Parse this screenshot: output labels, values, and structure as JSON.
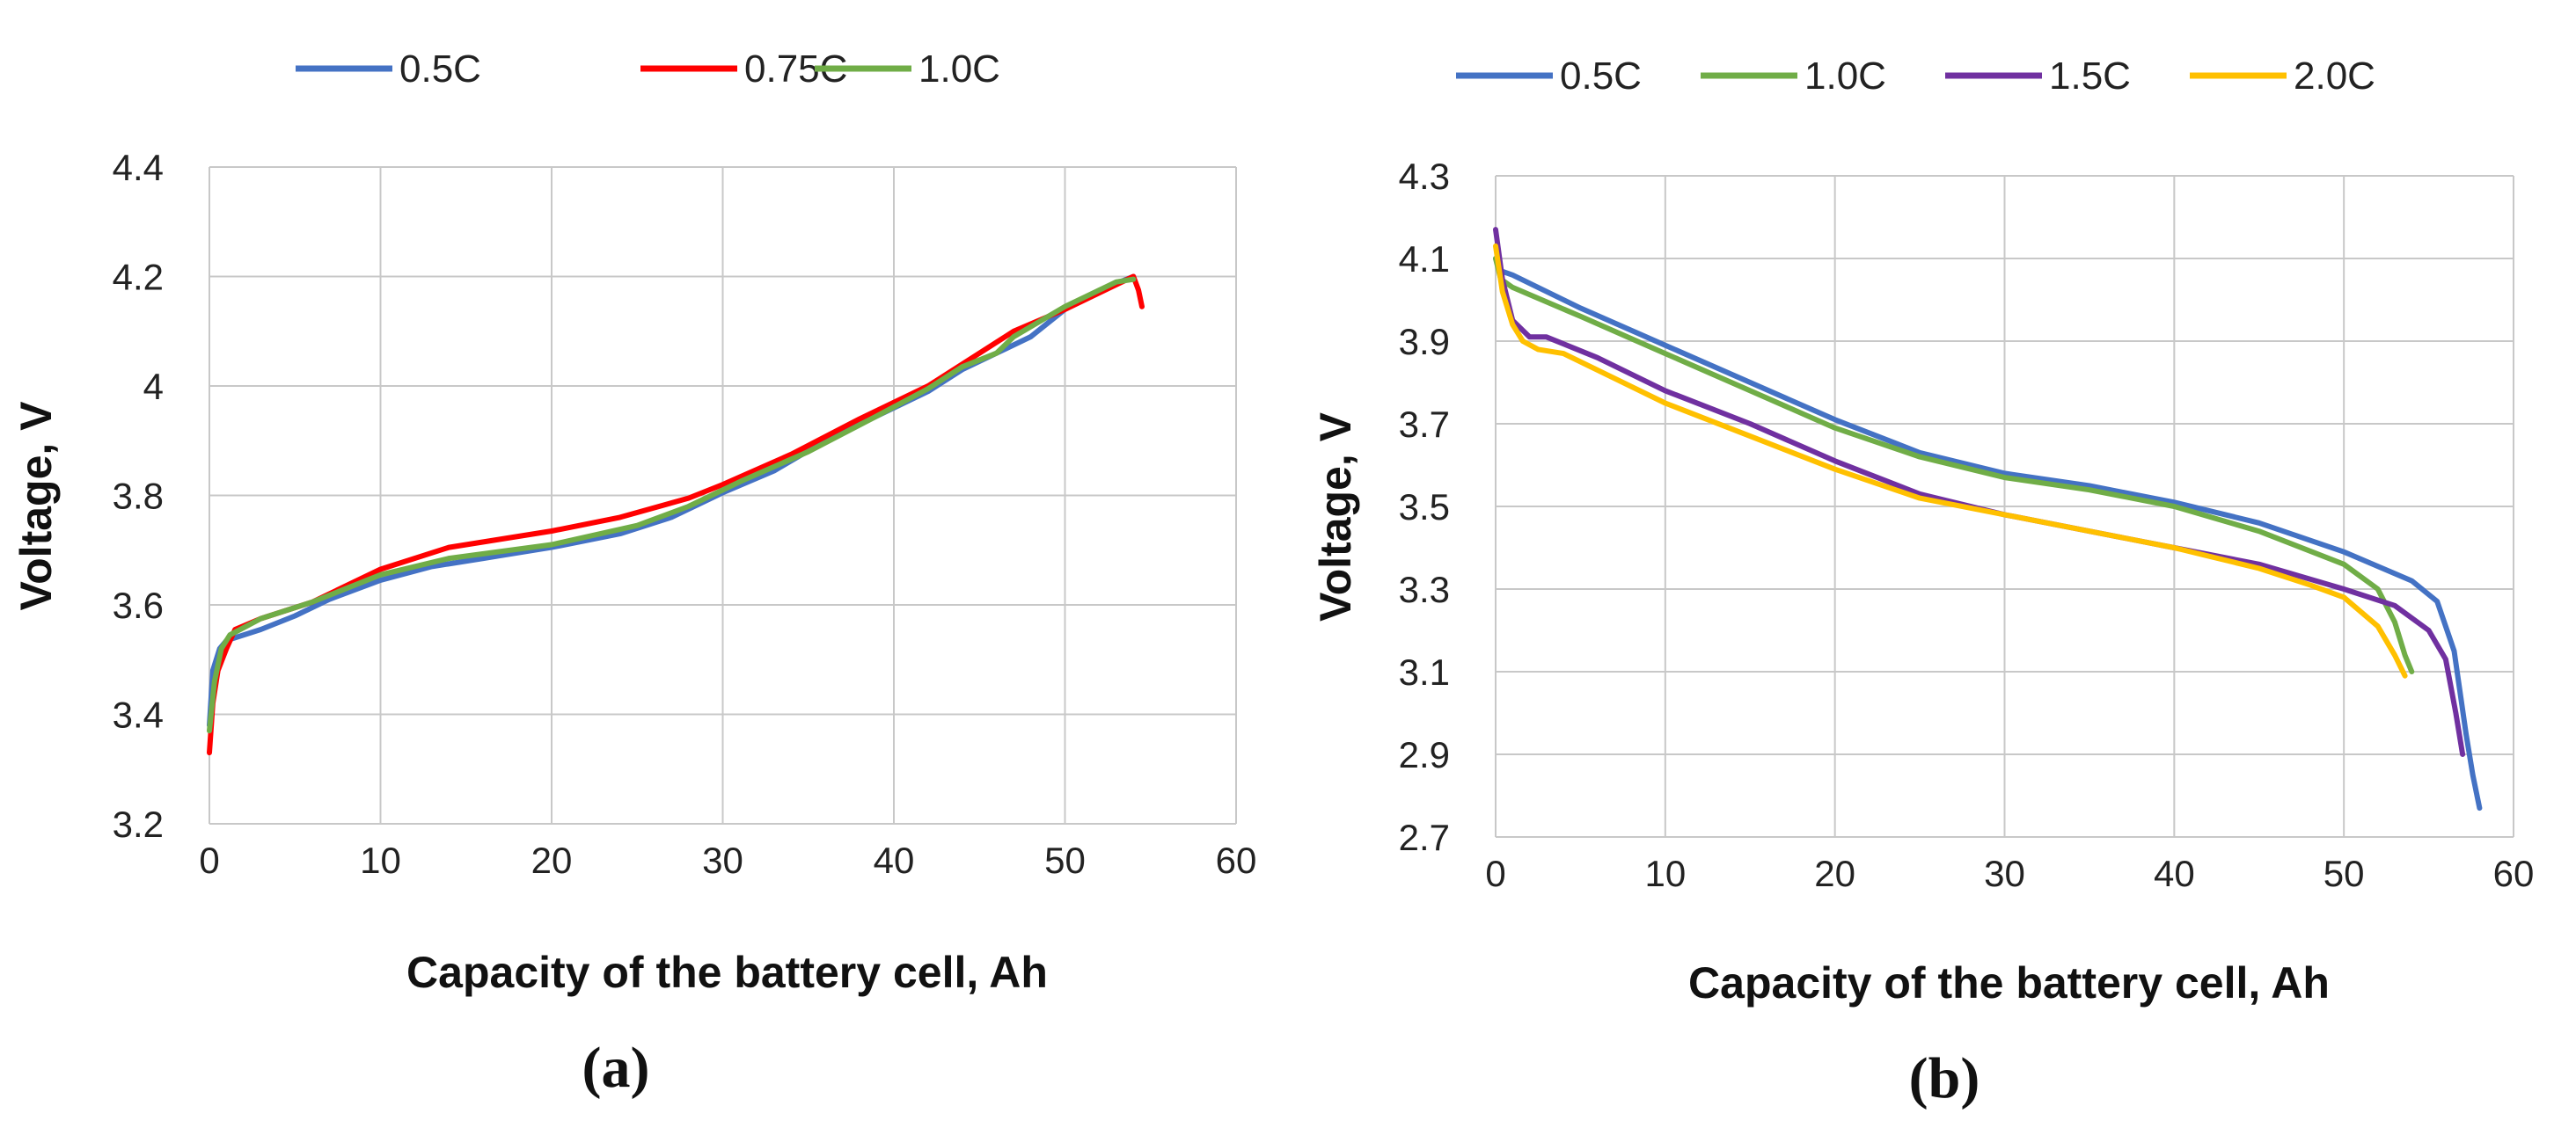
{
  "chart_data": [
    {
      "type": "line",
      "panel_label": "(a)",
      "xlabel": "Capacity of the battery cell, Ah",
      "ylabel": "Voltage, V",
      "xlim": [
        0,
        60
      ],
      "ylim": [
        3.2,
        4.4
      ],
      "xticks": [
        0,
        10,
        20,
        30,
        40,
        50,
        60
      ],
      "yticks": [
        3.2,
        3.4,
        3.6,
        3.8,
        4.0,
        4.2,
        4.4
      ],
      "x_tick_labels": [
        "0",
        "10",
        "20",
        "30",
        "40",
        "50",
        "60"
      ],
      "y_tick_labels": [
        "3.2",
        "3.4",
        "3.6",
        "3.8",
        "4",
        "4.2",
        "4.4"
      ],
      "grid": true,
      "legend_position": "top",
      "series": [
        {
          "name": "0.5C",
          "color": "#4472C4",
          "points": [
            [
              0,
              3.38
            ],
            [
              0.2,
              3.48
            ],
            [
              0.6,
              3.52
            ],
            [
              1,
              3.535
            ],
            [
              3,
              3.555
            ],
            [
              5,
              3.58
            ],
            [
              7,
              3.61
            ],
            [
              10,
              3.645
            ],
            [
              13,
              3.67
            ],
            [
              16,
              3.685
            ],
            [
              20,
              3.705
            ],
            [
              24,
              3.73
            ],
            [
              27,
              3.76
            ],
            [
              30,
              3.805
            ],
            [
              33,
              3.845
            ],
            [
              36,
              3.9
            ],
            [
              40,
              3.96
            ],
            [
              42,
              3.99
            ],
            [
              44,
              4.03
            ],
            [
              46,
              4.06
            ],
            [
              48,
              4.09
            ],
            [
              50,
              4.14
            ],
            [
              52,
              4.175
            ],
            [
              54,
              4.2
            ]
          ]
        },
        {
          "name": "0.75C",
          "color": "#FF0000",
          "points": [
            [
              0,
              3.33
            ],
            [
              0.2,
              3.42
            ],
            [
              0.5,
              3.48
            ],
            [
              1,
              3.52
            ],
            [
              1.5,
              3.555
            ],
            [
              3,
              3.575
            ],
            [
              6,
              3.605
            ],
            [
              10,
              3.665
            ],
            [
              14,
              3.705
            ],
            [
              20,
              3.735
            ],
            [
              24,
              3.76
            ],
            [
              28,
              3.795
            ],
            [
              30,
              3.82
            ],
            [
              34,
              3.875
            ],
            [
              38,
              3.94
            ],
            [
              42,
              4.0
            ],
            [
              47,
              4.1
            ],
            [
              50,
              4.14
            ],
            [
              53,
              4.185
            ],
            [
              54,
              4.2
            ],
            [
              54.3,
              4.175
            ],
            [
              54.5,
              4.145
            ]
          ]
        },
        {
          "name": "1.0C",
          "color": "#70AD47",
          "points": [
            [
              0,
              3.37
            ],
            [
              0.3,
              3.46
            ],
            [
              0.7,
              3.52
            ],
            [
              1.2,
              3.545
            ],
            [
              3,
              3.575
            ],
            [
              6,
              3.605
            ],
            [
              10,
              3.655
            ],
            [
              14,
              3.685
            ],
            [
              20,
              3.71
            ],
            [
              25,
              3.745
            ],
            [
              28,
              3.78
            ],
            [
              31,
              3.825
            ],
            [
              35,
              3.88
            ],
            [
              39,
              3.945
            ],
            [
              42,
              3.995
            ],
            [
              44,
              4.035
            ],
            [
              46,
              4.06
            ],
            [
              47,
              4.09
            ],
            [
              50,
              4.145
            ],
            [
              53,
              4.19
            ],
            [
              54,
              4.195
            ]
          ]
        }
      ]
    },
    {
      "type": "line",
      "panel_label": "(b)",
      "xlabel": "Capacity of the battery cell, Ah",
      "ylabel": "Voltage, V",
      "xlim": [
        0,
        60
      ],
      "ylim": [
        2.7,
        4.3
      ],
      "xticks": [
        0,
        10,
        20,
        30,
        40,
        50,
        60
      ],
      "yticks": [
        2.7,
        2.9,
        3.1,
        3.3,
        3.5,
        3.7,
        3.9,
        4.1,
        4.3
      ],
      "x_tick_labels": [
        "0",
        "10",
        "20",
        "30",
        "40",
        "50",
        "60"
      ],
      "y_tick_labels": [
        "2.7",
        "2.9",
        "3.1",
        "3.3",
        "3.5",
        "3.7",
        "3.9",
        "4.1",
        "4.3"
      ],
      "grid": true,
      "legend_position": "top",
      "series": [
        {
          "name": "0.5C",
          "color": "#4472C4",
          "points": [
            [
              0,
              4.1
            ],
            [
              0.3,
              4.07
            ],
            [
              1,
              4.06
            ],
            [
              5,
              3.98
            ],
            [
              10,
              3.89
            ],
            [
              15,
              3.8
            ],
            [
              20,
              3.71
            ],
            [
              25,
              3.63
            ],
            [
              30,
              3.58
            ],
            [
              35,
              3.55
            ],
            [
              40,
              3.51
            ],
            [
              45,
              3.46
            ],
            [
              50,
              3.39
            ],
            [
              54,
              3.32
            ],
            [
              55.5,
              3.27
            ],
            [
              56.5,
              3.15
            ],
            [
              57.2,
              2.95
            ],
            [
              57.6,
              2.85
            ],
            [
              58,
              2.77
            ]
          ]
        },
        {
          "name": "1.0C",
          "color": "#70AD47",
          "points": [
            [
              0,
              4.1
            ],
            [
              0.3,
              4.05
            ],
            [
              1,
              4.03
            ],
            [
              5,
              3.96
            ],
            [
              10,
              3.87
            ],
            [
              15,
              3.78
            ],
            [
              20,
              3.69
            ],
            [
              25,
              3.62
            ],
            [
              30,
              3.57
            ],
            [
              35,
              3.54
            ],
            [
              40,
              3.5
            ],
            [
              45,
              3.44
            ],
            [
              50,
              3.36
            ],
            [
              52,
              3.3
            ],
            [
              53,
              3.22
            ],
            [
              53.6,
              3.14
            ],
            [
              54,
              3.1
            ]
          ]
        },
        {
          "name": "1.5C",
          "color": "#7030A0",
          "points": [
            [
              0,
              4.17
            ],
            [
              0.4,
              4.05
            ],
            [
              1,
              3.95
            ],
            [
              2,
              3.91
            ],
            [
              3,
              3.91
            ],
            [
              6,
              3.86
            ],
            [
              10,
              3.78
            ],
            [
              15,
              3.7
            ],
            [
              20,
              3.61
            ],
            [
              25,
              3.53
            ],
            [
              30,
              3.48
            ],
            [
              35,
              3.44
            ],
            [
              40,
              3.4
            ],
            [
              45,
              3.36
            ],
            [
              50,
              3.3
            ],
            [
              53,
              3.26
            ],
            [
              55,
              3.2
            ],
            [
              56,
              3.13
            ],
            [
              56.6,
              3.0
            ],
            [
              57,
              2.9
            ]
          ]
        },
        {
          "name": "2.0C",
          "color": "#FFC000",
          "points": [
            [
              0,
              4.13
            ],
            [
              0.4,
              4.02
            ],
            [
              1,
              3.94
            ],
            [
              1.6,
              3.9
            ],
            [
              2.5,
              3.88
            ],
            [
              4,
              3.87
            ],
            [
              7,
              3.81
            ],
            [
              10,
              3.75
            ],
            [
              15,
              3.67
            ],
            [
              20,
              3.59
            ],
            [
              25,
              3.52
            ],
            [
              30,
              3.48
            ],
            [
              35,
              3.44
            ],
            [
              40,
              3.4
            ],
            [
              45,
              3.35
            ],
            [
              48,
              3.31
            ],
            [
              50,
              3.28
            ],
            [
              52,
              3.21
            ],
            [
              53,
              3.14
            ],
            [
              53.6,
              3.09
            ]
          ]
        }
      ]
    }
  ]
}
